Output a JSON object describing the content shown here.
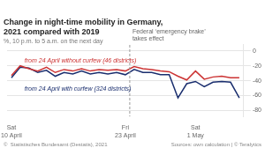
{
  "chart_data": {
    "type": "line",
    "title": [
      "Change in night-time mobility in Germany,",
      "2021 compared with 2019"
    ],
    "subtitle": "%, 10 p.m. to 5 a.m. on the next day",
    "categories": [
      "Sat\n10 April",
      null,
      null,
      null,
      null,
      null,
      null,
      null,
      null,
      null,
      null,
      null,
      null,
      "Fri\n23 April",
      null,
      null,
      null,
      null,
      null,
      null,
      null,
      "Sat\n1 May",
      null,
      null,
      null,
      null,
      null
    ],
    "series": [
      {
        "name": "from 24 April without curfew (46 districts)",
        "color": "#cc3333",
        "values": [
          -33,
          -20,
          -24,
          -27,
          -22,
          -29,
          -25,
          -27,
          -24,
          -27,
          -25,
          -26,
          -25,
          -27,
          -21,
          -24,
          -25,
          -27,
          -28,
          -34,
          -39,
          -27,
          -38,
          -35,
          -34,
          -36,
          -36
        ]
      },
      {
        "name": "from 24 April with curfew (324 districts)",
        "color": "#1a2e6e",
        "values": [
          -36,
          -22,
          -23,
          -29,
          -26,
          -34,
          -29,
          -31,
          -27,
          -31,
          -29,
          -31,
          -29,
          -32,
          -25,
          -29,
          -29,
          -32,
          -32,
          -63,
          -44,
          -41,
          -48,
          -42,
          -41,
          -42,
          -63
        ]
      }
    ],
    "ylim": [
      -88,
      8
    ],
    "yticks": [
      0,
      -20,
      -40,
      -60,
      -80
    ],
    "grid": true,
    "annotations": [
      {
        "type": "vline",
        "x": 13.5,
        "text": [
          "Federal ‘emergency brake’",
          "takes effect"
        ]
      }
    ],
    "footer": [
      "©  Statistisches Bundesamt (Destatis), 2021",
      "Sources: own calculation | © Teralytics"
    ]
  }
}
